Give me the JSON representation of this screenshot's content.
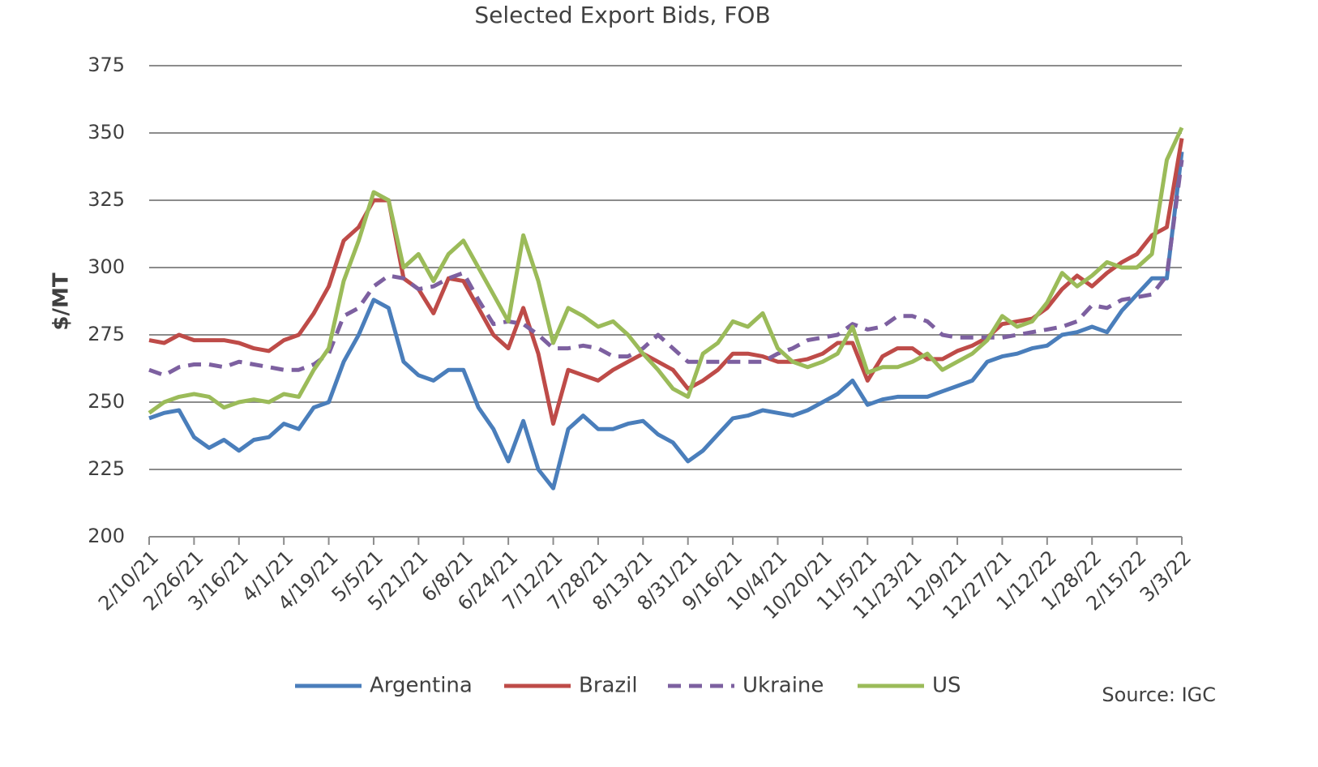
{
  "chart_data": {
    "type": "line",
    "title": "Selected Export Bids, FOB",
    "y_label": "$/MT",
    "source": "Source: IGC",
    "categories": [
      "2/10/21",
      null,
      null,
      "2/26/21",
      null,
      null,
      "3/16/21",
      null,
      null,
      "4/1/21",
      null,
      null,
      "4/19/21",
      null,
      null,
      "5/5/21",
      null,
      null,
      "5/21/21",
      null,
      null,
      "6/8/21",
      null,
      null,
      "6/24/21",
      null,
      null,
      "7/12/21",
      null,
      null,
      "7/28/21",
      null,
      null,
      "8/13/21",
      null,
      null,
      "8/31/21",
      null,
      null,
      "9/16/21",
      null,
      null,
      "10/4/21",
      null,
      null,
      "10/20/21",
      null,
      null,
      "11/5/21",
      null,
      null,
      "11/23/21",
      null,
      null,
      "12/9/21",
      null,
      null,
      "12/27/21",
      null,
      null,
      "1/12/22",
      null,
      null,
      "1/28/22",
      null,
      null,
      "2/15/22",
      null,
      null,
      "3/3/22"
    ],
    "series": [
      {
        "name": "Argentina",
        "color": "#4a7ebb",
        "dashed": false,
        "values": [
          244,
          246,
          247,
          237,
          233,
          236,
          232,
          236,
          237,
          242,
          240,
          248,
          250,
          265,
          275,
          288,
          285,
          265,
          260,
          258,
          262,
          262,
          248,
          240,
          228,
          243,
          225,
          218,
          240,
          245,
          240,
          240,
          242,
          243,
          238,
          235,
          228,
          232,
          238,
          244,
          245,
          247,
          246,
          245,
          247,
          250,
          253,
          258,
          249,
          251,
          252,
          252,
          252,
          254,
          256,
          258,
          265,
          267,
          268,
          270,
          271,
          275,
          276,
          278,
          276,
          284,
          290,
          296,
          296,
          343
        ]
      },
      {
        "name": "Brazil",
        "color": "#be4b48",
        "dashed": false,
        "values": [
          273,
          272,
          275,
          273,
          273,
          273,
          272,
          270,
          269,
          273,
          275,
          283,
          293,
          310,
          315,
          325,
          325,
          296,
          292,
          283,
          296,
          295,
          285,
          275,
          270,
          285,
          268,
          242,
          262,
          260,
          258,
          262,
          265,
          268,
          265,
          262,
          255,
          258,
          262,
          268,
          268,
          267,
          265,
          265,
          266,
          268,
          272,
          272,
          258,
          267,
          270,
          270,
          266,
          266,
          269,
          271,
          274,
          279,
          280,
          281,
          285,
          292,
          297,
          293,
          298,
          302,
          305,
          312,
          315,
          348
        ]
      },
      {
        "name": "Ukraine",
        "color": "#7d60a0",
        "dashed": true,
        "values": [
          262,
          260,
          263,
          264,
          264,
          263,
          265,
          264,
          263,
          262,
          262,
          264,
          268,
          282,
          285,
          293,
          297,
          296,
          292,
          293,
          296,
          298,
          288,
          279,
          280,
          279,
          275,
          270,
          270,
          271,
          270,
          267,
          267,
          270,
          275,
          270,
          265,
          265,
          265,
          265,
          265,
          265,
          268,
          270,
          273,
          274,
          275,
          279,
          277,
          278,
          282,
          282,
          280,
          275,
          274,
          274,
          274,
          274,
          275,
          276,
          277,
          278,
          280,
          286,
          285,
          288,
          289,
          290,
          297,
          340
        ]
      },
      {
        "name": "US",
        "color": "#9bbb59",
        "dashed": false,
        "values": [
          246,
          250,
          252,
          253,
          252,
          248,
          250,
          251,
          250,
          253,
          252,
          262,
          270,
          295,
          310,
          328,
          325,
          300,
          305,
          295,
          305,
          310,
          300,
          290,
          280,
          312,
          295,
          272,
          285,
          282,
          278,
          280,
          275,
          268,
          262,
          255,
          252,
          268,
          272,
          280,
          278,
          283,
          270,
          265,
          263,
          265,
          268,
          278,
          261,
          263,
          263,
          265,
          268,
          262,
          265,
          268,
          273,
          282,
          278,
          280,
          287,
          298,
          293,
          297,
          302,
          300,
          300,
          305,
          340,
          352
        ]
      }
    ],
    "ylim": [
      200,
      375
    ],
    "yticks": [
      200,
      225,
      250,
      275,
      300,
      325,
      350,
      375
    ],
    "grid": true,
    "legend": "bottom"
  }
}
